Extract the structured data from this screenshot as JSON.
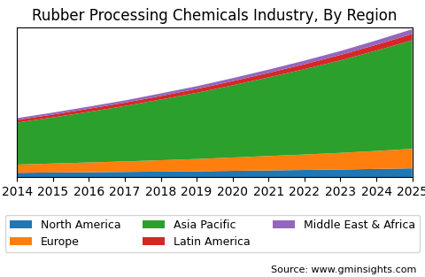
{
  "chart_data": {
    "type": "area",
    "stacked": true,
    "title": "Rubber Processing Chemicals Industry, By Region",
    "x": [
      2014,
      2015,
      2016,
      2017,
      2018,
      2019,
      2020,
      2021,
      2022,
      2023,
      2024,
      2025
    ],
    "series": [
      {
        "name": "North America",
        "values": [
          0.3,
          0.32,
          0.34,
          0.36,
          0.38,
          0.4,
          0.43,
          0.46,
          0.49,
          0.52,
          0.56,
          0.6
        ]
      },
      {
        "name": "Europe",
        "values": [
          0.55,
          0.6,
          0.65,
          0.7,
          0.76,
          0.82,
          0.89,
          0.96,
          1.03,
          1.11,
          1.2,
          1.3
        ]
      },
      {
        "name": "Asia Pacific",
        "values": [
          2.8,
          3.08,
          3.38,
          3.7,
          4.05,
          4.42,
          4.82,
          5.25,
          5.7,
          6.18,
          6.7,
          7.25
        ]
      },
      {
        "name": "Latin America",
        "values": [
          0.18,
          0.19,
          0.21,
          0.22,
          0.24,
          0.26,
          0.28,
          0.3,
          0.33,
          0.36,
          0.39,
          0.42
        ]
      },
      {
        "name": "Middle East & Africa",
        "values": [
          0.12,
          0.13,
          0.14,
          0.15,
          0.17,
          0.18,
          0.2,
          0.22,
          0.24,
          0.26,
          0.29,
          0.32
        ]
      }
    ],
    "xlim": [
      2014,
      2025
    ],
    "xticks": [
      2014,
      2015,
      2016,
      2017,
      2018,
      2019,
      2020,
      2021,
      2022,
      2023,
      2024,
      2025
    ],
    "ylim": [
      0,
      9.9889
    ],
    "tick_labels": "x",
    "grid": false,
    "legend": "lower center",
    "annotations": [
      "Source: www.gminsights.com"
    ]
  }
}
